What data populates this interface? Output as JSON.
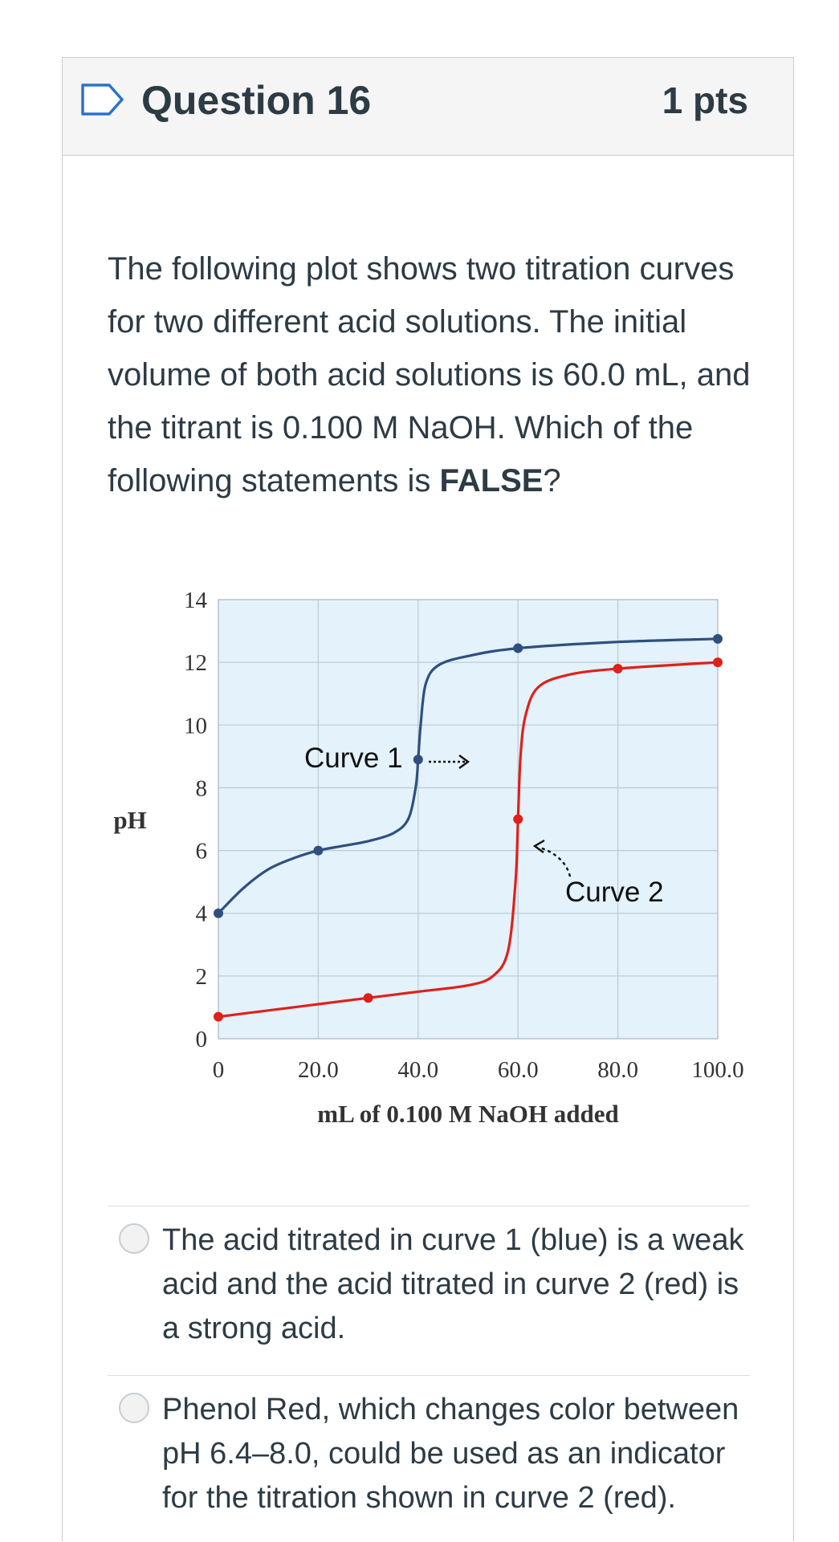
{
  "question": {
    "title": "Question 16",
    "points": "1 pts",
    "text_before": "The following plot shows two titration curves for two different acid solutions. The initial volume of both acid solutions is 60.0 mL, and the titrant is 0.100 M NaOH. Which of the following statements is ",
    "text_bold": "FALSE",
    "text_after": "?"
  },
  "chart_data": {
    "type": "line",
    "xlabel": "mL of 0.100 M NaOH added",
    "ylabel": "pH",
    "xlim": [
      0,
      100
    ],
    "ylim": [
      0,
      14
    ],
    "x_ticks": [
      "0",
      "20.0",
      "40.0",
      "60.0",
      "80.0",
      "100.0"
    ],
    "y_ticks": [
      "0",
      "2",
      "4",
      "6",
      "8",
      "10",
      "12",
      "14"
    ],
    "grid": true,
    "series": [
      {
        "name": "Curve 1",
        "color": "#2f4f7f",
        "points": [
          [
            0,
            4.0
          ],
          [
            5,
            4.8
          ],
          [
            10,
            5.4
          ],
          [
            15,
            5.75
          ],
          [
            20,
            6.0
          ],
          [
            25,
            6.15
          ],
          [
            30,
            6.3
          ],
          [
            35,
            6.55
          ],
          [
            38,
            7.0
          ],
          [
            39.5,
            8.0
          ],
          [
            40,
            8.9
          ],
          [
            40.5,
            10.0
          ],
          [
            41.5,
            11.3
          ],
          [
            44,
            11.9
          ],
          [
            50,
            12.2
          ],
          [
            60,
            12.45
          ],
          [
            80,
            12.65
          ],
          [
            100,
            12.75
          ]
        ],
        "markers": [
          [
            0,
            4.0
          ],
          [
            20,
            6.0
          ],
          [
            40,
            8.9
          ],
          [
            60,
            12.45
          ],
          [
            100,
            12.75
          ]
        ]
      },
      {
        "name": "Curve 2",
        "color": "#e0201a",
        "points": [
          [
            0,
            0.7
          ],
          [
            10,
            0.9
          ],
          [
            20,
            1.1
          ],
          [
            30,
            1.3
          ],
          [
            40,
            1.5
          ],
          [
            50,
            1.7
          ],
          [
            55,
            2.0
          ],
          [
            58,
            2.8
          ],
          [
            59.5,
            5.0
          ],
          [
            60,
            7.0
          ],
          [
            60.5,
            9.0
          ],
          [
            61.5,
            10.3
          ],
          [
            64,
            11.2
          ],
          [
            70,
            11.6
          ],
          [
            80,
            11.8
          ],
          [
            100,
            12.0
          ]
        ],
        "markers": [
          [
            0,
            0.7
          ],
          [
            30,
            1.3
          ],
          [
            60,
            7.0
          ],
          [
            80,
            11.8
          ],
          [
            100,
            12.0
          ]
        ]
      }
    ],
    "annotations": [
      "Curve 1",
      "Curve 2"
    ]
  },
  "answers": [
    {
      "text": "The acid titrated in curve 1 (blue) is a weak acid and the acid titrated in curve 2 (red) is a strong acid."
    },
    {
      "text": "Phenol Red, which changes color between pH 6.4–8.0, could be used as an indicator for the titration shown in curve 2 (red)."
    }
  ]
}
